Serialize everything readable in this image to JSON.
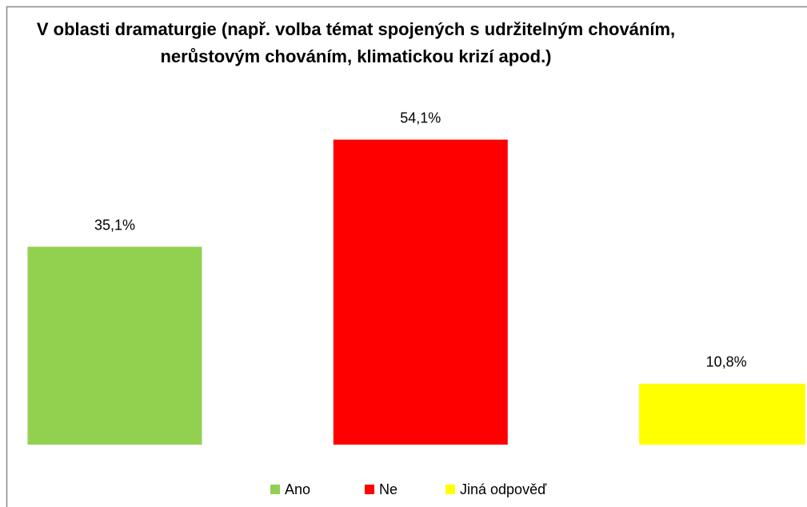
{
  "chart_data": {
    "type": "bar",
    "title": "V oblasti dramaturgie (např. volba témat spojených s udržitelným chováním, nerůstovým chováním, klimatickou krizí apod.)",
    "categories": [
      null
    ],
    "series": [
      {
        "name": "Ano",
        "color": "#92d050",
        "values": [
          35.1
        ],
        "value_labels": [
          "35,1%"
        ]
      },
      {
        "name": "Ne",
        "color": "#ff0000",
        "values": [
          54.1
        ],
        "value_labels": [
          "54,1%"
        ]
      },
      {
        "name": "Jiná odpověď",
        "color": "#ffff00",
        "values": [
          10.8
        ],
        "value_labels": [
          "10,8%"
        ]
      }
    ],
    "legend": "bottom"
  }
}
